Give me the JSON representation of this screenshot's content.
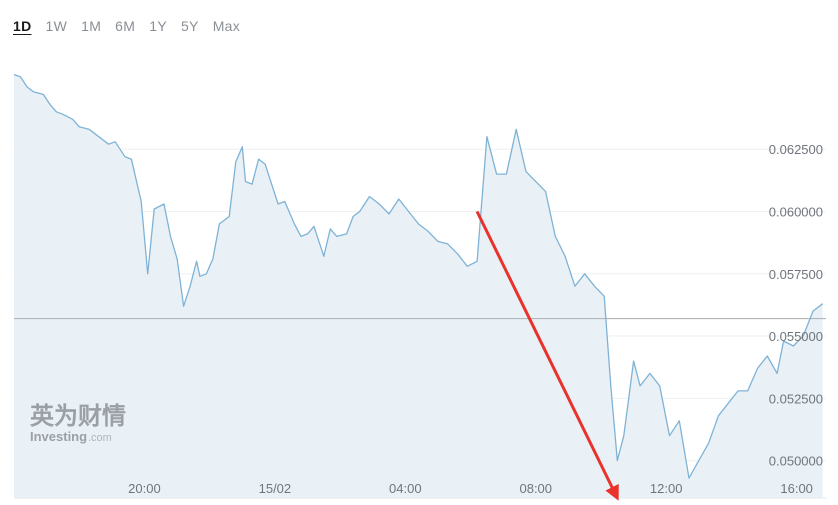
{
  "range_tabs": [
    {
      "label": "1D",
      "active": true
    },
    {
      "label": "1W",
      "active": false
    },
    {
      "label": "1M",
      "active": false
    },
    {
      "label": "6M",
      "active": false
    },
    {
      "label": "1Y",
      "active": false
    },
    {
      "label": "5Y",
      "active": false
    },
    {
      "label": "Max",
      "active": false
    }
  ],
  "watermark": {
    "cn": "英为财情",
    "en": "Investing",
    "com": ".com"
  },
  "colors": {
    "line": "#7eb3d6",
    "area": "#e6eff5",
    "grid": "#eef0f2",
    "reference": "#a9adb1",
    "arrow": "#e8322b"
  },
  "chart_data": {
    "type": "area",
    "y_ticks": [
      0.05,
      0.0525,
      0.055,
      0.0575,
      0.06,
      0.0625
    ],
    "y_tick_labels": [
      "0.050000",
      "0.052500",
      "0.055000",
      "0.057500",
      "0.060000",
      "0.062500"
    ],
    "ylim": [
      0.0485,
      0.066
    ],
    "x_tick_labels": [
      "20:00",
      "15/02",
      "04:00",
      "08:00",
      "12:00",
      "16:00"
    ],
    "x_tick_hours": [
      4,
      8,
      12,
      16,
      20,
      24
    ],
    "xlim_hours": [
      0,
      24.9
    ],
    "reference_level": 0.0557,
    "series": [
      {
        "x_hours": [
          0,
          0.2,
          0.4,
          0.6,
          0.9,
          1.1,
          1.3,
          1.5,
          1.8,
          2.0,
          2.3,
          2.6,
          2.9,
          3.1,
          3.4,
          3.6,
          3.9,
          4.1,
          4.3,
          4.6,
          4.8,
          5.0,
          5.2,
          5.4,
          5.6,
          5.7,
          5.9,
          6.1,
          6.3,
          6.6,
          6.8,
          7.0,
          7.1,
          7.3,
          7.5,
          7.7,
          7.9,
          8.1,
          8.3,
          8.6,
          8.8,
          9.0,
          9.2,
          9.5,
          9.7,
          9.9,
          10.2,
          10.4,
          10.6,
          10.9,
          11.2,
          11.5,
          11.8,
          12.1,
          12.4,
          12.7,
          13.0,
          13.3,
          13.6,
          13.9,
          14.2,
          14.5,
          14.8,
          15.1,
          15.4,
          15.7,
          16.0,
          16.3,
          16.6,
          16.9,
          17.2,
          17.5,
          17.8,
          18.1,
          18.3,
          18.5,
          18.7,
          19.0,
          19.2,
          19.5,
          19.8,
          20.1,
          20.4,
          20.7,
          21.0,
          21.3,
          21.6,
          21.9,
          22.2,
          22.5,
          22.8,
          23.1,
          23.4,
          23.6,
          23.9,
          24.2,
          24.5,
          24.8
        ],
        "values": [
          0.0655,
          0.0654,
          0.065,
          0.0648,
          0.0647,
          0.0643,
          0.064,
          0.0639,
          0.0637,
          0.0634,
          0.0633,
          0.063,
          0.0627,
          0.0628,
          0.0622,
          0.0621,
          0.0604,
          0.0575,
          0.0601,
          0.0603,
          0.059,
          0.0581,
          0.0562,
          0.057,
          0.058,
          0.0574,
          0.0575,
          0.0581,
          0.0595,
          0.0598,
          0.062,
          0.0626,
          0.0612,
          0.0611,
          0.0621,
          0.0619,
          0.0611,
          0.0603,
          0.0604,
          0.0595,
          0.059,
          0.0591,
          0.0594,
          0.0582,
          0.0593,
          0.059,
          0.0591,
          0.0598,
          0.06,
          0.0606,
          0.0603,
          0.0599,
          0.0605,
          0.06,
          0.0595,
          0.0592,
          0.0588,
          0.0587,
          0.0583,
          0.0578,
          0.058,
          0.063,
          0.0615,
          0.0615,
          0.0633,
          0.0616,
          0.0612,
          0.0608,
          0.059,
          0.0582,
          0.057,
          0.0575,
          0.057,
          0.0566,
          0.053,
          0.05,
          0.051,
          0.054,
          0.053,
          0.0535,
          0.053,
          0.051,
          0.0516,
          0.0493,
          0.05,
          0.0507,
          0.0518,
          0.0523,
          0.0528,
          0.0528,
          0.0537,
          0.0542,
          0.0535,
          0.0548,
          0.0546,
          0.055,
          0.056,
          0.0563
        ]
      }
    ],
    "annotation": {
      "type": "arrow",
      "from": {
        "x_hours": 14.2,
        "value": 0.06
      },
      "to": {
        "x_hours": 18.5,
        "value": 0.0485
      }
    }
  }
}
